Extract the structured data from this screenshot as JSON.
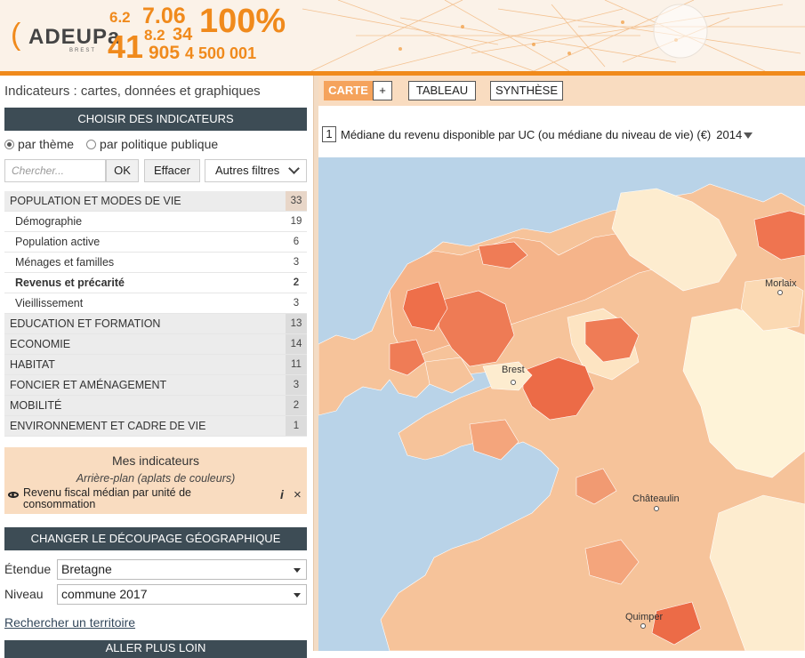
{
  "header": {
    "logo_text": "ADEUPa",
    "logo_sub": "BREST",
    "numbers": [
      "6.2",
      "7.06",
      "100%",
      "8.2",
      "34",
      "41",
      "905",
      "4 500 001"
    ]
  },
  "left": {
    "page_title": "Indicateurs : cartes, données et graphiques",
    "choose_header": "CHOISIR DES INDICATEURS",
    "radio_theme": "par thème",
    "radio_policy": "par politique publique",
    "search_placeholder": "Chercher...",
    "ok_label": "OK",
    "effacer_label": "Effacer",
    "filters_label": "Autres filtres",
    "themes": [
      {
        "label": "POPULATION ET MODES DE VIE",
        "count": "33"
      },
      {
        "label": "Démographie",
        "count": "19"
      },
      {
        "label": "Population active",
        "count": "6"
      },
      {
        "label": "Ménages et familles",
        "count": "3"
      },
      {
        "label": "Revenus et précarité",
        "count": "2"
      },
      {
        "label": "Vieillissement",
        "count": "3"
      },
      {
        "label": "EDUCATION ET FORMATION",
        "count": "13"
      },
      {
        "label": "ECONOMIE",
        "count": "14"
      },
      {
        "label": "HABITAT",
        "count": "11"
      },
      {
        "label": "FONCIER ET AMÉNAGEMENT",
        "count": "3"
      },
      {
        "label": "MOBILITÉ",
        "count": "2"
      },
      {
        "label": "ENVIRONNEMENT ET CADRE DE VIE",
        "count": "1"
      }
    ],
    "mes_title": "Mes indicateurs",
    "mes_sub": "Arrière-plan (aplats de couleurs)",
    "mes_indicator": "Revenu fiscal médian par unité de consommation",
    "geo_header": "CHANGER LE DÉCOUPAGE GÉOGRAPHIQUE",
    "etendue_label": "Étendue",
    "etendue_value": "Bretagne",
    "niveau_label": "Niveau",
    "niveau_value": "commune 2017",
    "search_territory": "Rechercher un territoire",
    "bottom_header": "ALLER PLUS LOIN"
  },
  "right": {
    "tab_carte": "CARTE",
    "tab_plus": "+",
    "tab_tableau": "TABLEAU",
    "tab_synthese": "SYNTHÈSE",
    "map_number": "1",
    "map_title": "Médiane du revenu disponible par UC (ou médiane du niveau de vie) (€)",
    "map_year": "2014",
    "cities": [
      "Morlaix",
      "Brest",
      "Châteaulin",
      "Quimper"
    ]
  },
  "colors": {
    "accent": "#f08a1c",
    "dark_bar": "#3d4c55",
    "peach": "#f9dcc0",
    "sea": "#b9d3e8"
  }
}
